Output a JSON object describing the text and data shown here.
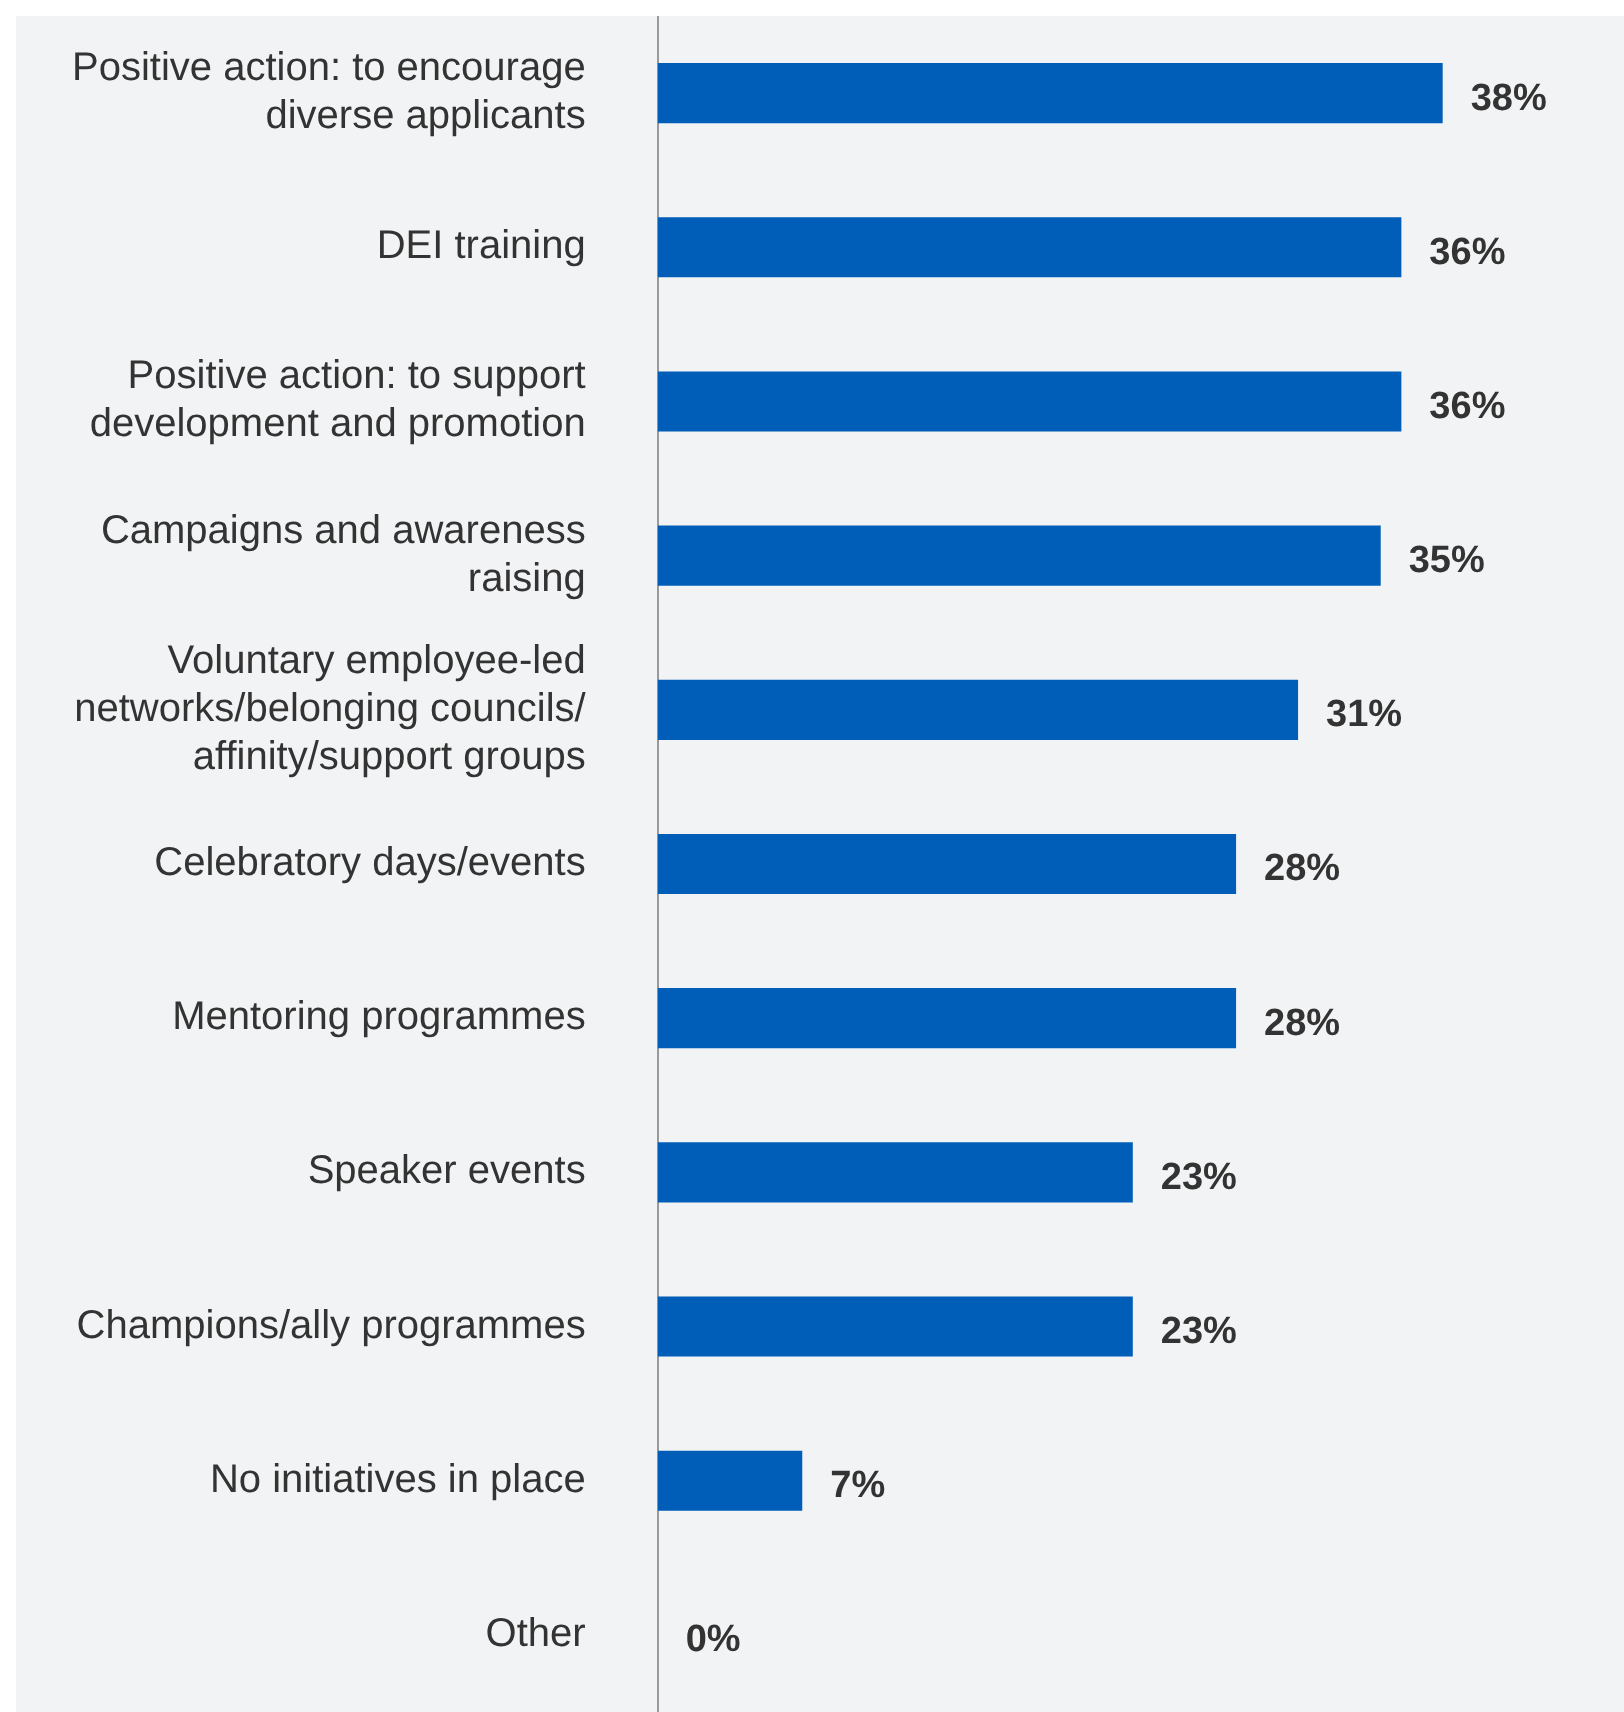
{
  "chart_data": {
    "type": "bar",
    "orientation": "horizontal",
    "categories": [
      "Positive action: to encourage diverse applicants",
      "DEI training",
      "Positive action: to support development and promotion",
      "Campaigns and awareness raising",
      "Voluntary employee-led networks/belonging councils/ affinity/support groups",
      "Celebratory days/events",
      "Mentoring programmes",
      "Speaker events",
      "Champions/ally programmes",
      "No initiatives in place",
      "Other"
    ],
    "values": [
      38,
      36,
      36,
      35,
      31,
      28,
      28,
      23,
      23,
      7,
      0
    ],
    "value_labels": [
      "38%",
      "36%",
      "36%",
      "35%",
      "31%",
      "28%",
      "28%",
      "23%",
      "23%",
      "7%",
      "0%"
    ],
    "color": "#005eb8",
    "legend": false,
    "tick_labels": "y"
  }
}
